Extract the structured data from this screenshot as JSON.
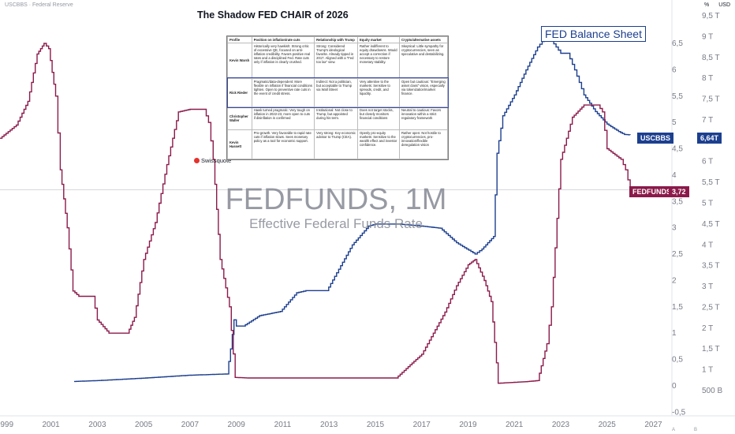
{
  "header": {
    "symbol_label": "USCBBS · Federal Reserve",
    "unit_pct": "%",
    "unit_usd": "USD"
  },
  "chart_title": "The Shadow FED CHAIR of 2026",
  "fbs_title": "FED Balance Sheet",
  "watermark": {
    "main": "FEDFUNDS, 1M",
    "sub": "Effective Federal Funds Rate"
  },
  "brand": "Swissquote",
  "tags": {
    "usc_name": "USCBBS",
    "usc_value": "6,64T",
    "ff_name": "FEDFUNDS",
    "ff_value": "3,72"
  },
  "colors": {
    "fedfunds": "#8b1a4a",
    "balance": "#1c3f8f"
  },
  "footer": {
    "a": "A",
    "b": "B"
  },
  "table": {
    "headers": [
      "Profile",
      "Position on inflation/rate cuts",
      "Relationship with Trump",
      "Equity market",
      "Crypto/alternative assets"
    ],
    "rows": [
      {
        "name": "Kevin Warsh",
        "cells": [
          "Historically very hawkish: Strong critic of excessive QE, focused on anti-inflation credibility. Favors positive real rates and a disciplined Fed. Rate cuts only if inflation is clearly crushed.",
          "Strong: Considered Trump's ideological favorite. Already tipped in 2017. Aligned with a \"Fed too lax\" view.",
          "Rather indifferent to equity drawdowns. Would accept a correction if necessary to restore monetary stability.",
          "Skeptical: Little sympathy for cryptocurrencies, seen as speculative and destabilizing."
        ]
      },
      {
        "name": "Rick Rieder",
        "cells": [
          "Pragmatic/data-dependent: More flexible on inflation if financial conditions tighten. Open to preventive rate cuts in the event of credit stress.",
          "Indirect: Not a politician, but acceptable to Trump via Wall Street",
          "Very attentive to the markets: Sensitive to spreads, credit, and liquidity.",
          "Open but cautious: \"Emerging asset class\" vision, especially via tokenization/market finance."
        ]
      },
      {
        "name": "Christopher Waller",
        "cells": [
          "Hawk turned pragmatic: Very tough on inflation in 2022-23, more open to cuts if disinflation is confirmed",
          "Institutional: Not close to Trump, but appointed during his term.",
          "Does not target stocks, but closely monitors financial conditions",
          "Neutral to cautious: Favors innovation within a strict regulatory framework"
        ]
      },
      {
        "name": "Kevin Hassett",
        "cells": [
          "Pro-growth. Very favorable to rapid rate cuts if inflation slows. Sees monetary policy as a tool for economic support.",
          "Very strong: Key economic advisor to Trump (CEA).",
          "Openly pro-equity markets: Sensitive to the wealth effect and investor confidence.",
          "Rather open: Not hostile to cryptocurrencies, pro-innovation/flexible deregulation vision"
        ]
      }
    ]
  },
  "chart_data": {
    "type": "line",
    "title": "The Shadow FED CHAIR of 2026",
    "x_ticks": [
      "1999",
      "2001",
      "2003",
      "2005",
      "2007",
      "2009",
      "2011",
      "2013",
      "2015",
      "2017",
      "2019",
      "2021",
      "2023",
      "2025",
      "2027"
    ],
    "x_range": [
      1998.8,
      2027.8
    ],
    "y_pct_ticks": [
      "6,5",
      "6",
      "5,5",
      "5",
      "4,5",
      "4",
      "3,5",
      "3",
      "2,5",
      "2",
      "1,5",
      "1",
      "0,5",
      "0",
      "-0,5"
    ],
    "y_pct_range": [
      -0.5,
      7.0
    ],
    "y_usd_ticks": [
      "9,5 T",
      "9 T",
      "8,5 T",
      "8 T",
      "7,5 T",
      "7 T",
      "6,5 T",
      "6 T",
      "5,5 T",
      "5 T",
      "4,5 T",
      "4 T",
      "3,5 T",
      "3 T",
      "2,5 T",
      "2 T",
      "1,5 T",
      "1 T",
      "500 B"
    ],
    "y_usd_range_trillions": [
      0.0,
      9.8
    ],
    "grid": false,
    "series": [
      {
        "name": "FEDFUNDS",
        "axis": "pct",
        "x": [
          1998.8,
          1999.5,
          2000.0,
          2000.4,
          2000.7,
          2000.9,
          2001.2,
          2001.4,
          2001.7,
          2001.95,
          2002.2,
          2002.8,
          2003.0,
          2003.5,
          2003.9,
          2004.3,
          2004.6,
          2005.0,
          2005.5,
          2006.0,
          2006.5,
          2007.0,
          2007.6,
          2007.8,
          2008.0,
          2008.3,
          2008.7,
          2008.95,
          2009.5,
          2015.9,
          2016.5,
          2017.0,
          2017.5,
          2018.0,
          2018.5,
          2019.0,
          2019.3,
          2019.7,
          2020.0,
          2020.3,
          2021.5,
          2022.0,
          2022.4,
          2022.6,
          2023.0,
          2023.5,
          2024.0,
          2024.6,
          2024.8,
          2025.0,
          2025.6,
          2025.8,
          2026.0
        ],
        "y": [
          4.7,
          4.95,
          5.4,
          6.3,
          6.5,
          6.4,
          5.5,
          4.1,
          3.0,
          1.8,
          1.7,
          1.7,
          1.25,
          1.0,
          1.0,
          1.0,
          1.3,
          2.4,
          3.1,
          4.2,
          5.2,
          5.25,
          5.25,
          5.0,
          4.3,
          2.4,
          1.5,
          0.16,
          0.15,
          0.15,
          0.4,
          0.6,
          1.0,
          1.4,
          1.9,
          2.3,
          2.4,
          2.0,
          1.6,
          0.05,
          0.08,
          0.1,
          0.8,
          1.5,
          4.3,
          5.1,
          5.33,
          5.33,
          5.2,
          4.5,
          4.3,
          4.1,
          3.72
        ]
      },
      {
        "name": "USCBBS",
        "axis": "usd",
        "x": [
          2002.0,
          2003.0,
          2005.0,
          2007.0,
          2008.6,
          2008.75,
          2008.9,
          2009.0,
          2009.3,
          2010.0,
          2010.9,
          2011.6,
          2012.0,
          2012.9,
          2013.5,
          2014.0,
          2014.7,
          2015.0,
          2016.0,
          2017.0,
          2017.8,
          2018.5,
          2019.3,
          2019.6,
          2020.1,
          2020.25,
          2020.5,
          2021.0,
          2021.5,
          2022.0,
          2022.3,
          2022.6,
          2023.0,
          2023.3,
          2023.6,
          2024.0,
          2024.5,
          2025.0,
          2025.5,
          2025.75,
          2026.0
        ],
        "y": [
          0.72,
          0.74,
          0.8,
          0.87,
          0.9,
          1.5,
          2.2,
          2.05,
          2.05,
          2.3,
          2.4,
          2.85,
          2.9,
          2.9,
          3.5,
          4.0,
          4.45,
          4.5,
          4.5,
          4.45,
          4.4,
          4.05,
          3.78,
          3.9,
          4.2,
          6.2,
          7.1,
          7.6,
          8.2,
          8.75,
          8.95,
          8.9,
          8.6,
          8.6,
          8.2,
          7.6,
          7.2,
          6.9,
          6.72,
          6.65,
          6.64
        ]
      }
    ]
  }
}
